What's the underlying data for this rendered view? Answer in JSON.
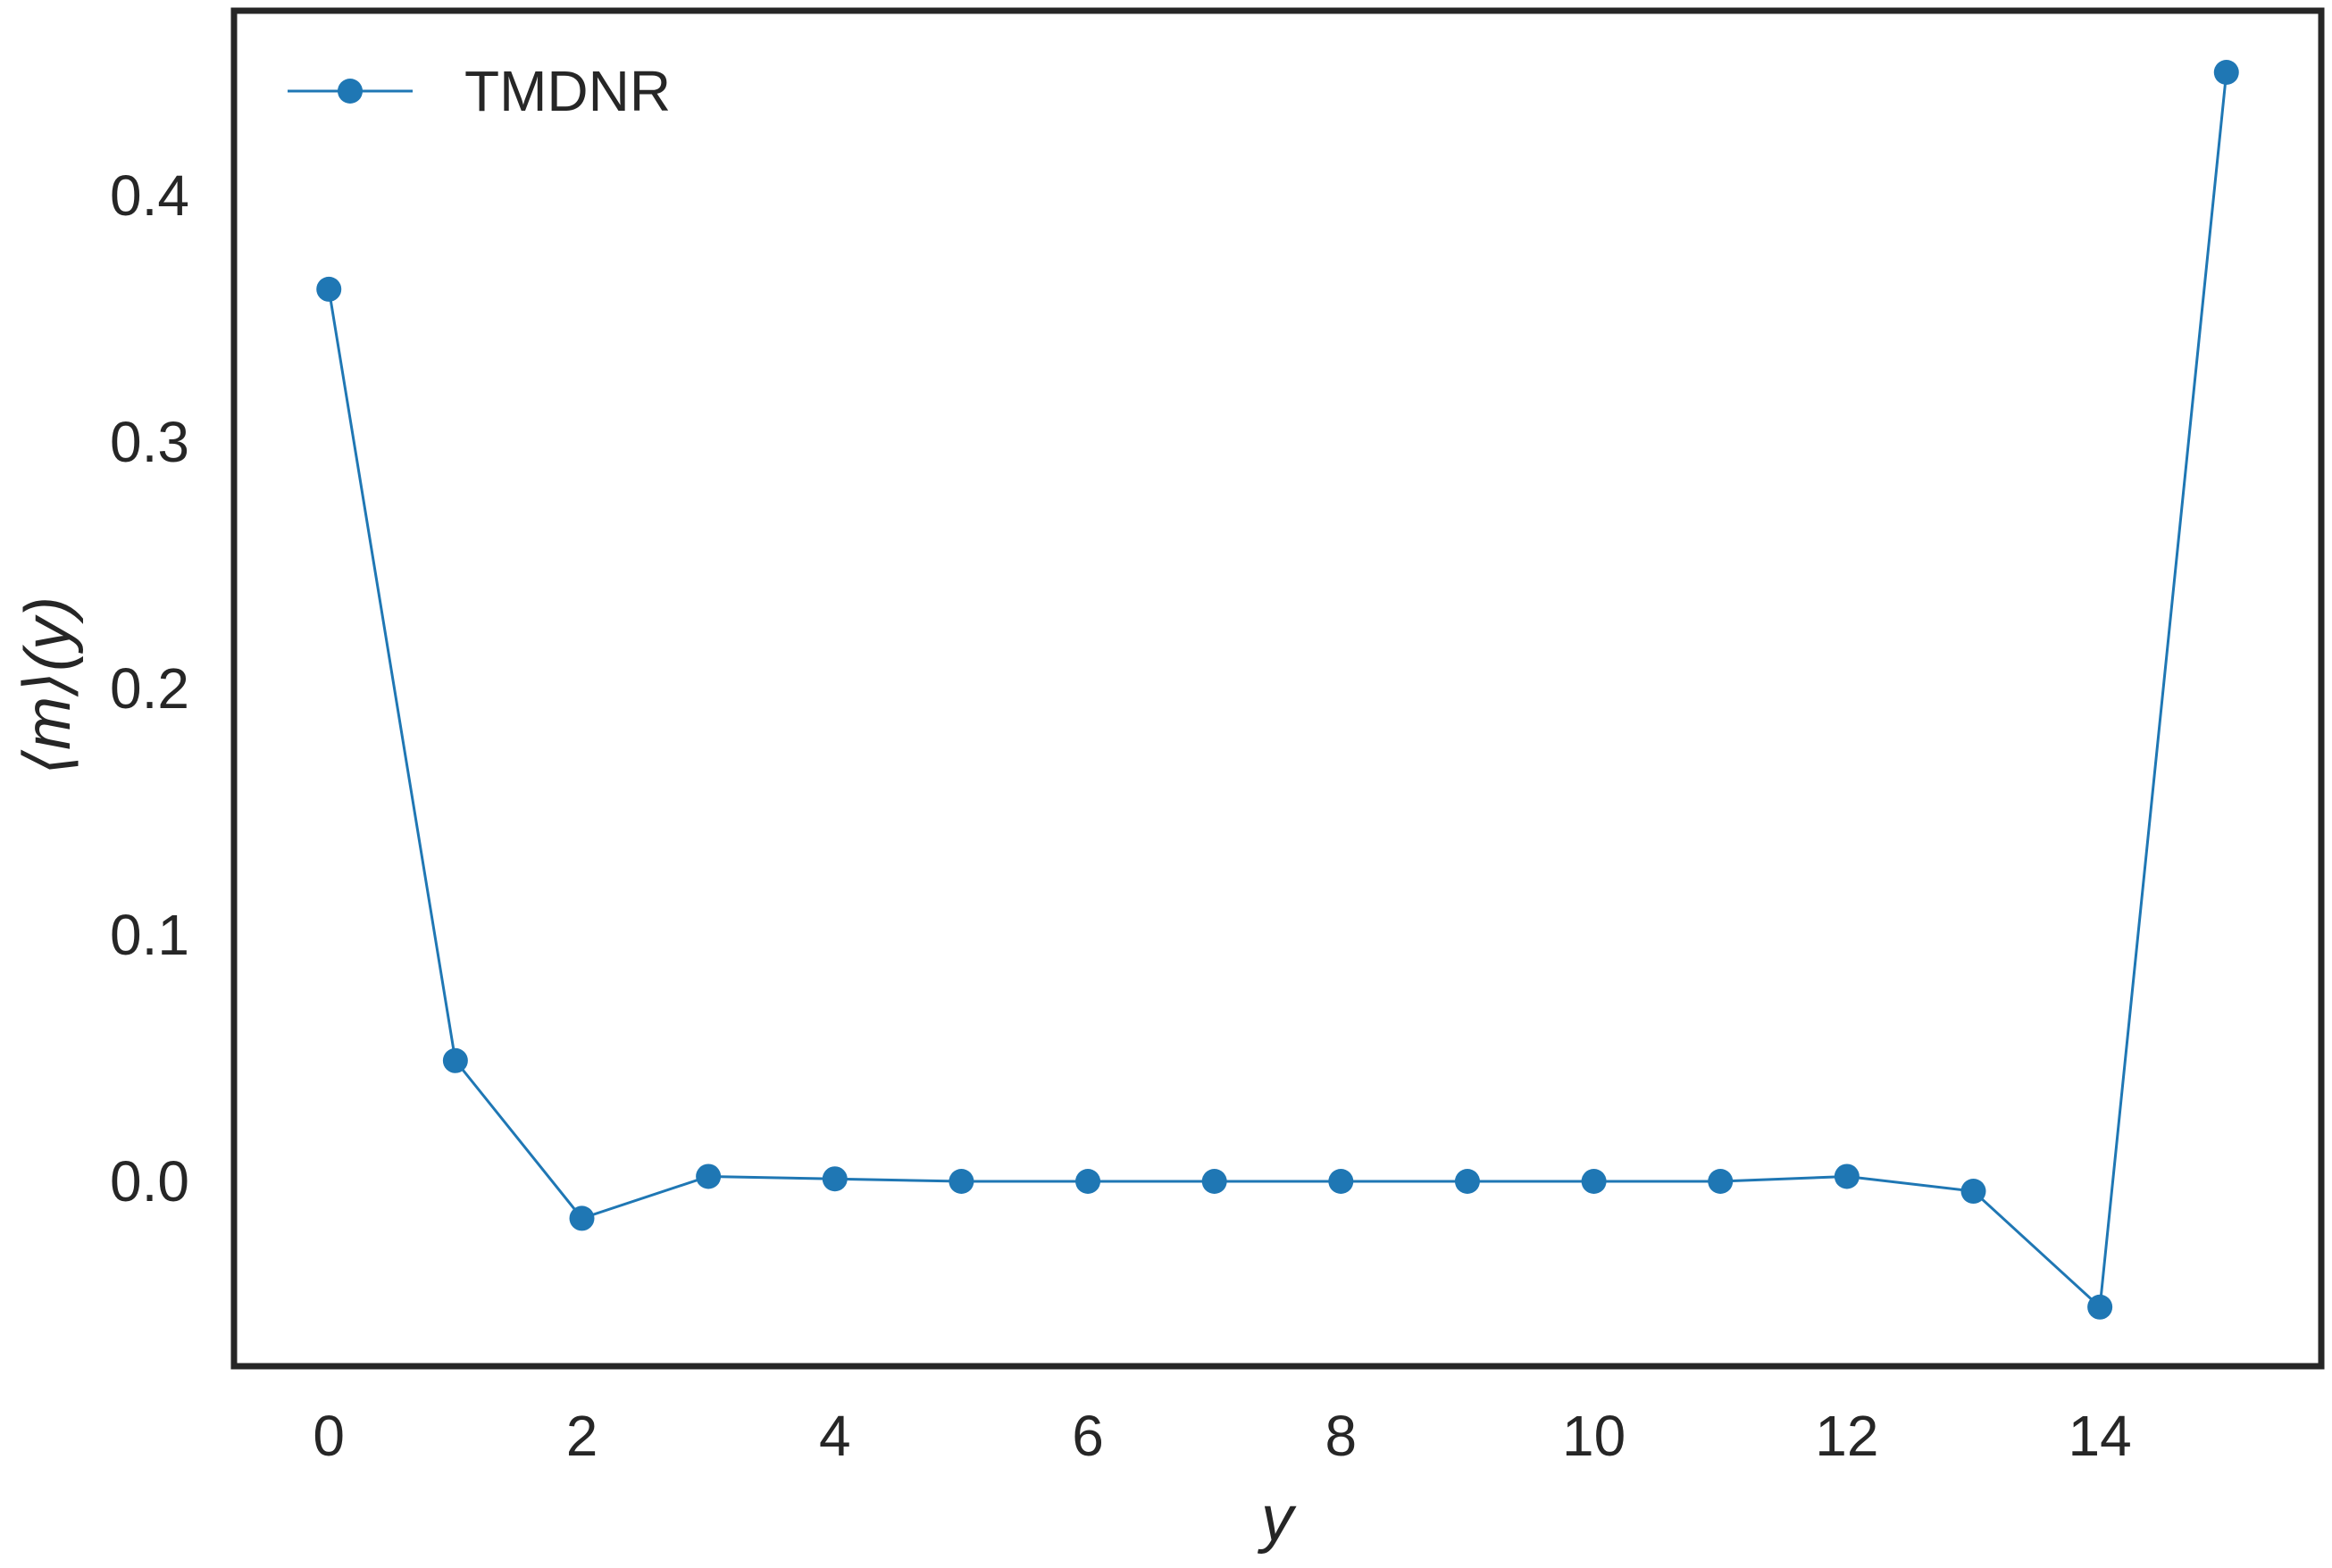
{
  "chart_data": {
    "type": "line",
    "xlabel": "y",
    "ylabel": "⟨m⟩(y)",
    "xlim": [
      -0.75,
      15.75
    ],
    "ylim": [
      -0.075,
      0.475
    ],
    "xticks": [
      0,
      2,
      4,
      6,
      8,
      10,
      12,
      14
    ],
    "xtick_labels": [
      "0",
      "2",
      "4",
      "6",
      "8",
      "10",
      "12",
      "14"
    ],
    "yticks": [
      0.0,
      0.1,
      0.2,
      0.3,
      0.4
    ],
    "ytick_labels": [
      "0.0",
      "0.1",
      "0.2",
      "0.3",
      "0.4"
    ],
    "grid": false,
    "legend_position": "top-left",
    "series": [
      {
        "name": "TMDNR",
        "color": "#1f77b4",
        "marker": "circle",
        "x": [
          0,
          1,
          2,
          3,
          4,
          5,
          6,
          7,
          8,
          9,
          10,
          11,
          12,
          13,
          14,
          15
        ],
        "y": [
          0.362,
          0.049,
          -0.015,
          0.002,
          0.001,
          0.0,
          0.0,
          0.0,
          0.0,
          0.0,
          0.0,
          0.0,
          0.002,
          -0.004,
          -0.051,
          0.45
        ]
      }
    ]
  }
}
